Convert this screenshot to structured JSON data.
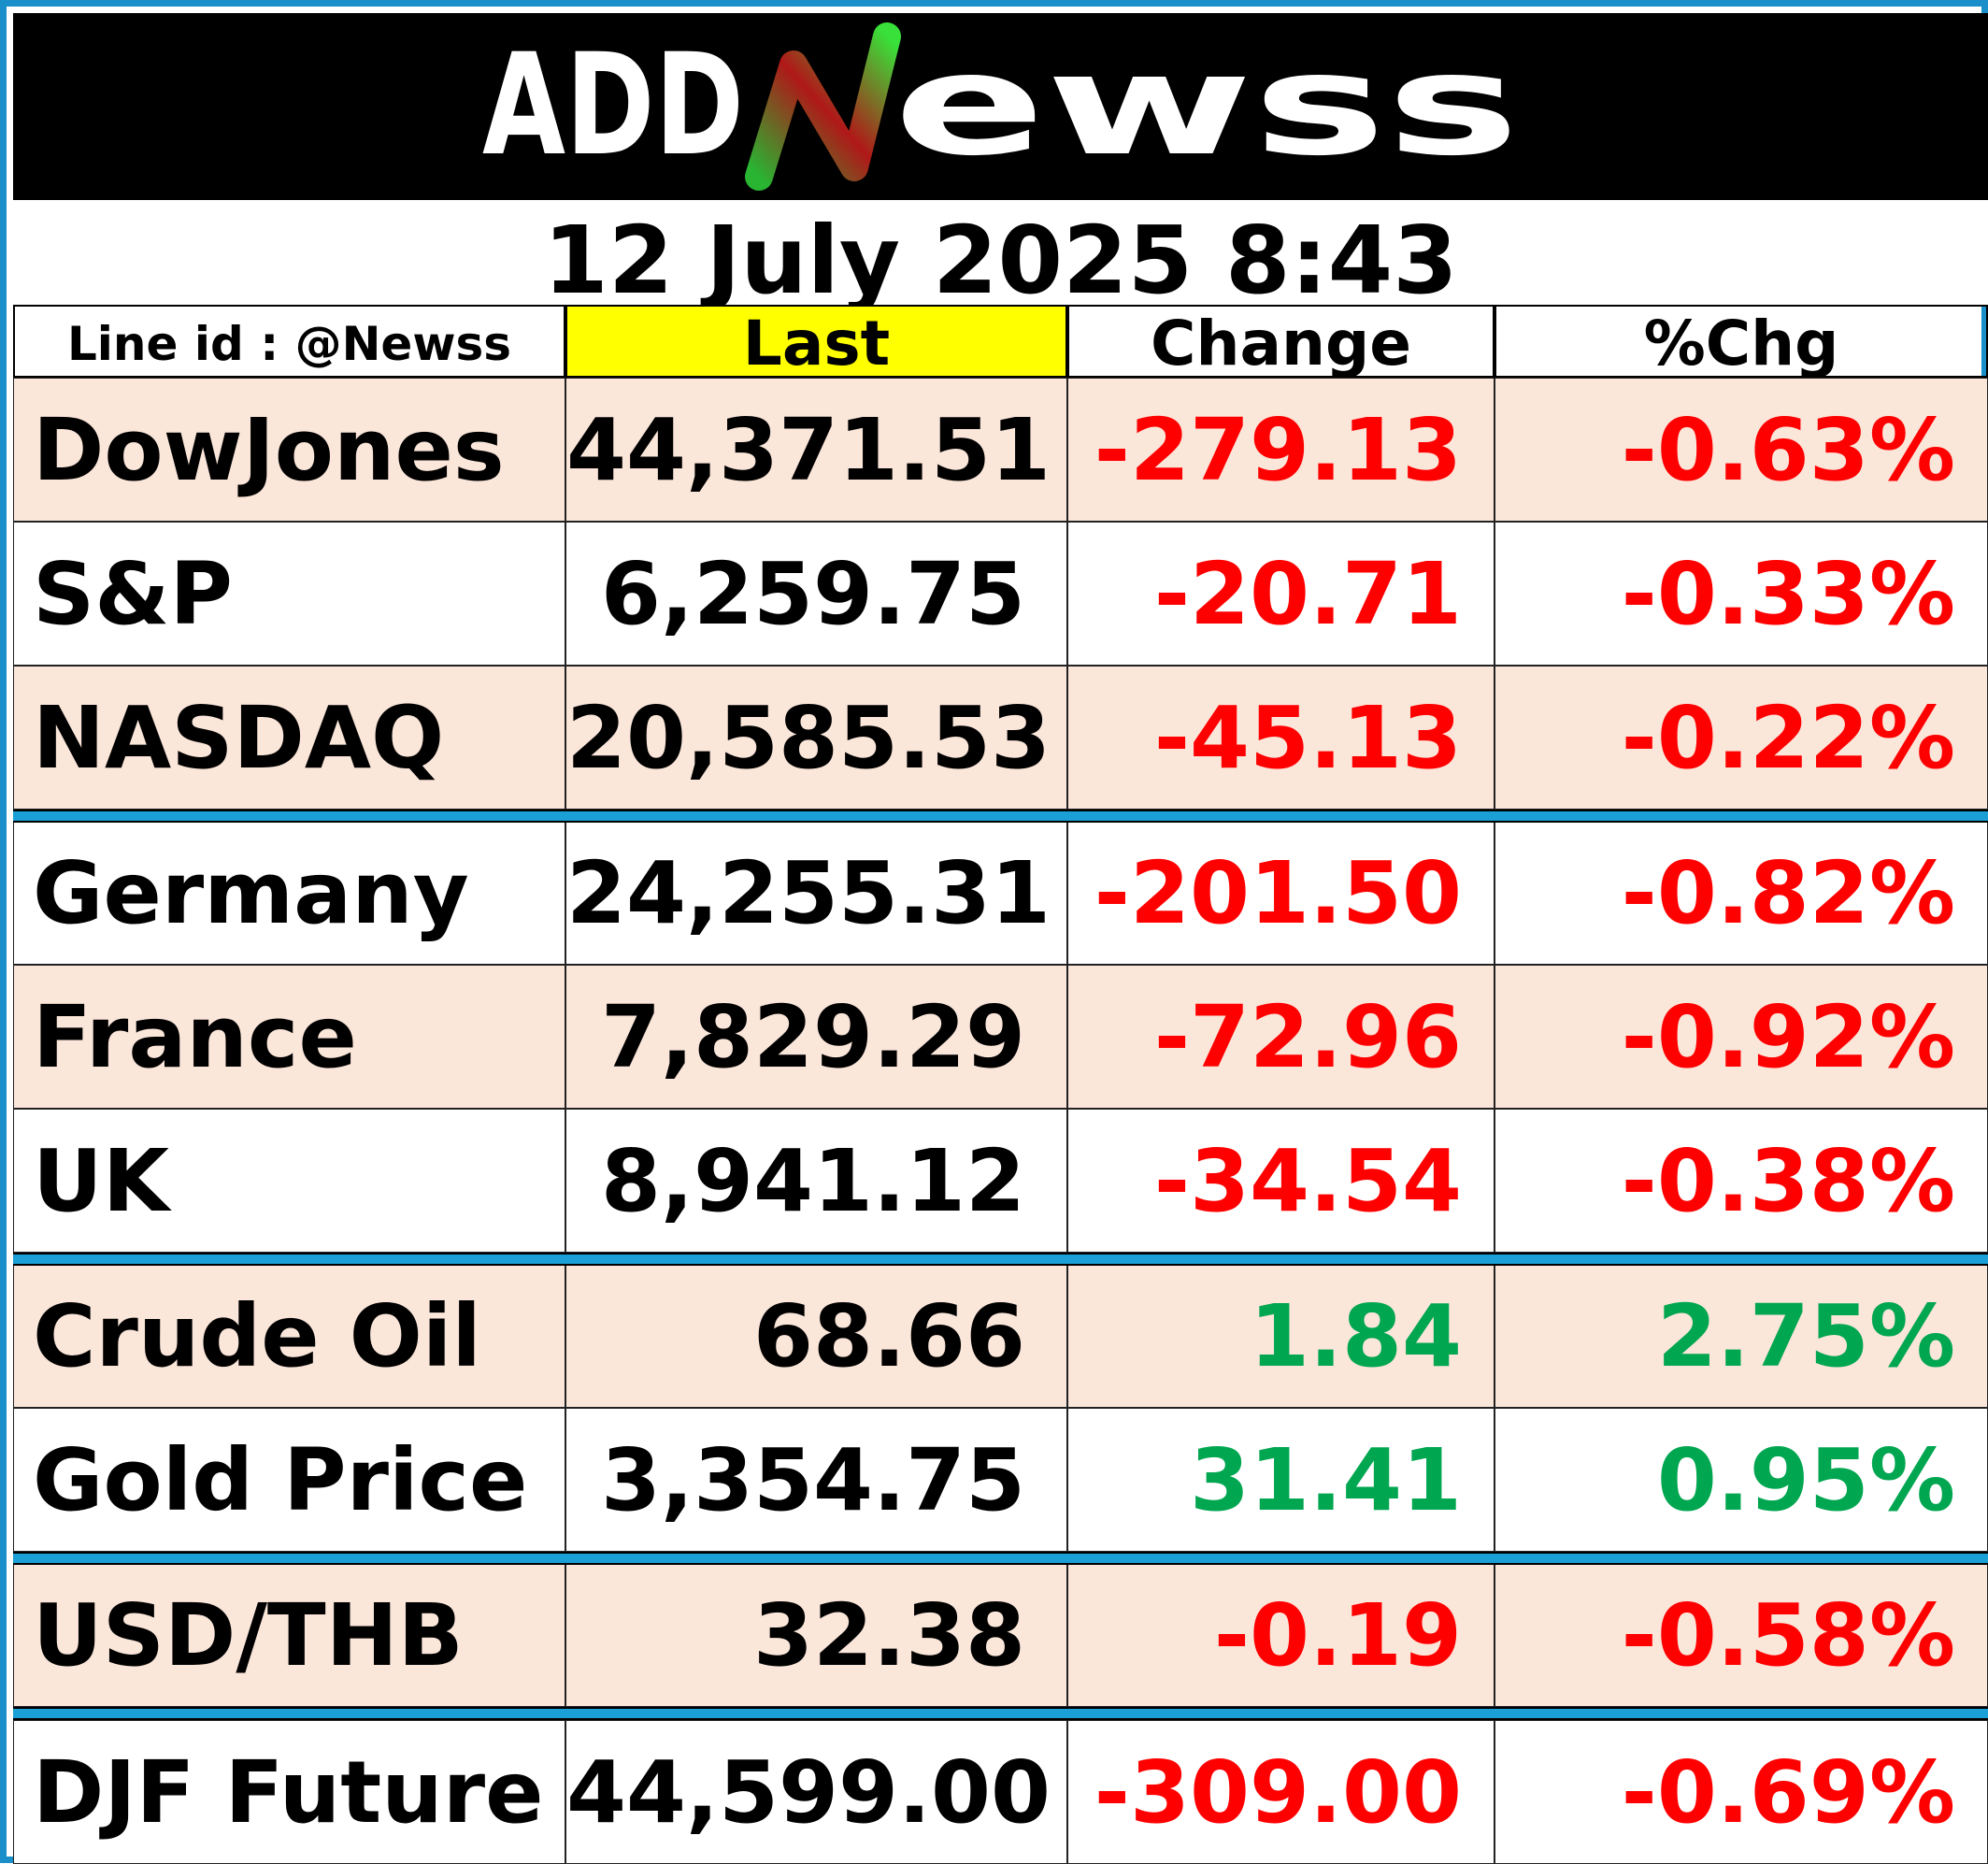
{
  "logo": {
    "text_left": "ADD",
    "text_right": "ewss",
    "letter_n": "N"
  },
  "datetime": "12 July 2025  8:43",
  "headers": {
    "line_id": "Line id : @Newss",
    "last": "Last",
    "change": "Change",
    "pct": "%Chg"
  },
  "colors": {
    "down": "#ff0000",
    "up": "#00a650",
    "shade": "#fbe6da",
    "plain": "#ffffff",
    "highlight": "#ffff00",
    "separator": "#1a9fd6"
  },
  "rows": [
    {
      "name": "DowJones",
      "last": "44,371.51",
      "change": "-279.13",
      "pct": "-0.63%",
      "dir": "down",
      "shade": true
    },
    {
      "name": "S&P",
      "last": "6,259.75",
      "change": "-20.71",
      "pct": "-0.33%",
      "dir": "down",
      "shade": false
    },
    {
      "name": "NASDAQ",
      "last": "20,585.53",
      "change": "-45.13",
      "pct": "-0.22%",
      "dir": "down",
      "shade": true
    },
    {
      "name": "Germany",
      "last": "24,255.31",
      "change": "-201.50",
      "pct": "-0.82%",
      "dir": "down",
      "shade": false
    },
    {
      "name": "France",
      "last": "7,829.29",
      "change": "-72.96",
      "pct": "-0.92%",
      "dir": "down",
      "shade": true
    },
    {
      "name": "UK",
      "last": "8,941.12",
      "change": "-34.54",
      "pct": "-0.38%",
      "dir": "down",
      "shade": false
    },
    {
      "name": "Crude Oil",
      "last": "68.66",
      "change": "1.84",
      "pct": "2.75%",
      "dir": "up",
      "shade": true
    },
    {
      "name": "Gold Price",
      "last": "3,354.75",
      "change": "31.41",
      "pct": "0.95%",
      "dir": "up",
      "shade": false
    },
    {
      "name": "USD/THB",
      "last": "32.38",
      "change": "-0.19",
      "pct": "-0.58%",
      "dir": "down",
      "shade": true
    },
    {
      "name": "DJF Future",
      "last": "44,599.00",
      "change": "-309.00",
      "pct": "-0.69%",
      "dir": "down",
      "shade": false
    }
  ]
}
